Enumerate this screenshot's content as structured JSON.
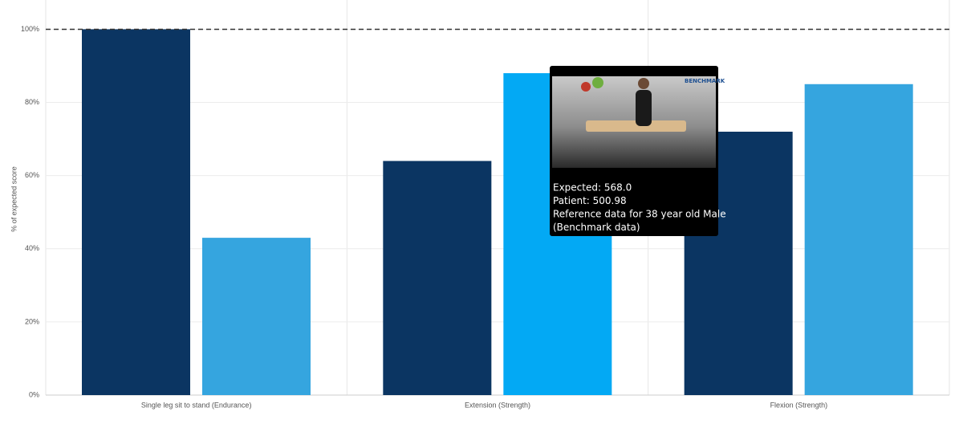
{
  "chart_data": {
    "type": "bar",
    "y_axis_label": "% of expected score",
    "categories": [
      "Single leg sit to stand (Endurance)",
      "Extension (Strength)",
      "Flexion (Strength)"
    ],
    "series": [
      {
        "color": "#0b3562",
        "values": [
          100,
          64,
          72
        ]
      },
      {
        "color": "#35a5df",
        "colors": [
          "#35a5df",
          "#03a9f4",
          "#35a5df"
        ],
        "values": [
          43,
          88,
          85
        ]
      }
    ],
    "ylim": [
      0,
      108
    ],
    "yticks": [
      {
        "value": 0,
        "label": "0%"
      },
      {
        "value": 20,
        "label": "20%"
      },
      {
        "value": 40,
        "label": "40%"
      },
      {
        "value": 60,
        "label": "60%"
      },
      {
        "value": 80,
        "label": "80%"
      },
      {
        "value": 100,
        "label": "100%"
      }
    ],
    "grid": true,
    "reference_line": 100,
    "tooltip": {
      "image_label": "BENCHMARK",
      "lines": [
        "Expected: 568.0",
        "Patient: 500.98",
        "Reference data for 38 year old Male",
        "(Benchmark data)"
      ]
    }
  }
}
